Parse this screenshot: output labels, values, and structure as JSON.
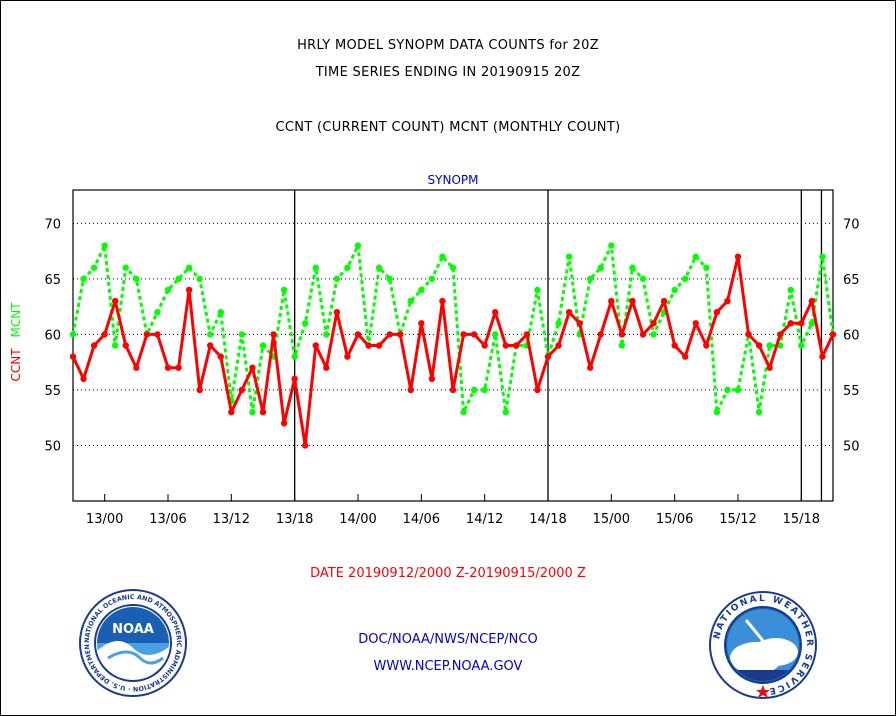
{
  "header": {
    "title_line1": "HRLY MODEL SYNOPM DATA COUNTS for 20Z",
    "title_line2": "TIME SERIES ENDING IN 20190915 20Z",
    "subtitle": "CCNT (CURRENT COUNT) MCNT (MONTHLY COUNT)"
  },
  "footer": {
    "date_range": "DATE 20190912/2000 Z-20190915/2000 Z",
    "agency": "DOC/NOAA/NWS/NCEP/NCO",
    "website": "WWW.NCEP.NOAA.GOV"
  },
  "logos": {
    "noaa_label": "NOAA",
    "noaa_ring_text": "NATIONAL OCEANIC AND ATMOSPHERIC ADMINISTRATION · U.S. DEPARTMENT OF COMMERCE ·",
    "nws_ring_text": "NATIONAL WEATHER SERVICE"
  },
  "colors": {
    "ccnt": "#ff0000",
    "mcnt": "#00ff00",
    "panel_title": "#0000cc",
    "footer_blue": "#0000cc",
    "date_red": "#ff0000"
  },
  "chart_data": {
    "type": "line",
    "title": "SYNOPM",
    "ylabel_ccnt": "CCNT",
    "ylabel_mcnt": "MCNT",
    "ylim": [
      45,
      73
    ],
    "yticks": [
      50,
      55,
      60,
      65,
      70
    ],
    "x_start_hour": 0,
    "x_end_hour": 72,
    "xtick_labels": [
      "13/00",
      "13/06",
      "13/12",
      "13/18",
      "14/00",
      "14/06",
      "14/12",
      "14/18",
      "15/00",
      "15/06",
      "15/12",
      "15/18"
    ],
    "day_boundaries_labels": [
      "13/18",
      "14/18",
      "15/18"
    ],
    "grid": "horizontal dotted",
    "series": [
      {
        "name": "CCNT",
        "color": "#ff0000",
        "values": [
          58,
          56,
          59,
          60,
          63,
          59,
          57,
          60,
          60,
          57,
          57,
          64,
          55,
          59,
          58,
          53,
          55,
          57,
          53,
          60,
          52,
          56,
          50,
          59,
          57,
          62,
          58,
          60,
          59,
          59,
          60,
          60,
          55,
          61,
          56,
          63,
          55,
          60,
          60,
          59,
          62,
          59,
          59,
          60,
          55,
          58,
          59,
          62,
          61,
          57,
          60,
          63,
          60,
          63,
          60,
          61,
          63,
          59,
          58,
          61,
          59,
          62,
          63,
          67,
          60,
          59,
          57,
          60,
          61,
          61,
          63,
          58,
          60
        ]
      },
      {
        "name": "MCNT",
        "color": "#00ff00",
        "values": [
          60,
          65,
          66,
          68,
          59,
          66,
          65,
          60,
          62,
          64,
          65,
          66,
          65,
          60,
          62,
          54,
          60,
          53,
          59,
          58,
          64,
          58,
          61,
          66,
          60,
          65,
          66,
          68,
          59,
          66,
          65,
          60,
          63,
          64,
          65,
          67,
          66,
          53,
          55,
          55,
          60,
          53,
          59,
          59,
          64,
          58,
          61,
          67,
          60,
          65,
          66,
          68,
          59,
          66,
          65,
          60,
          62,
          64,
          65,
          67,
          66,
          53,
          55,
          55,
          60,
          53,
          59,
          59,
          64,
          59,
          61,
          67,
          60
        ]
      }
    ]
  }
}
